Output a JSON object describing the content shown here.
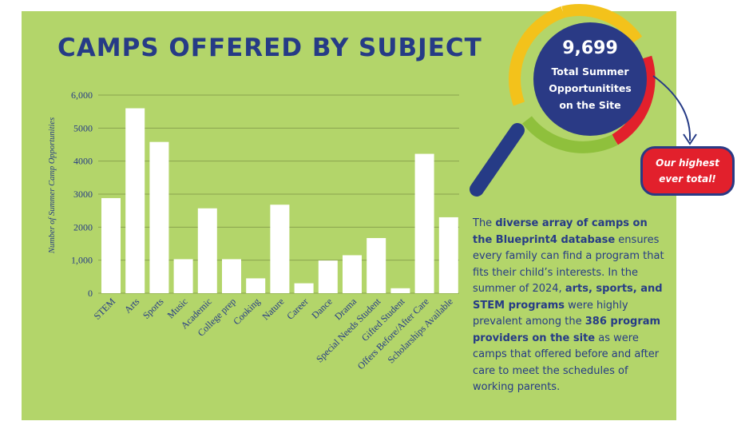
{
  "title": "CAMPS OFFERED BY SUBJECT",
  "highlight": {
    "number": "9,699",
    "caption": "Total Summer Opportunitites on the Site"
  },
  "callout": "Our highest ever total!",
  "description": {
    "p1": "The ",
    "b1": "diverse array of camps on the Blueprint4 database",
    "p2": " ensures every family can find a program that fits their child’s interests. In the summer of 2024, ",
    "b2": "arts, sports, and STEM programs",
    "p3": " were highly prevalent among the ",
    "b3": "386 program providers on the site",
    "p4": " as were camps that offered before and after care to meet the schedules of working parents."
  },
  "colors": {
    "panel": "#b3d56a",
    "navy": "#263b86",
    "bar": "#ffffff",
    "red": "#e2202c",
    "yellow": "#f3c21b",
    "green": "#8fc03c"
  },
  "icons": [
    "magnifying-glass-icon",
    "curved-arrow-icon"
  ],
  "chart_data": {
    "type": "bar",
    "title": "CAMPS OFFERED BY SUBJECT",
    "ylabel": "Number of Summer Camp Opportunities",
    "xlabel": "",
    "ylim": [
      0,
      6000
    ],
    "yticks": [
      "0",
      "1,000",
      "2000",
      "3000",
      "4000",
      "5000",
      "6,000"
    ],
    "grid": true,
    "categories": [
      "STEM",
      "Arts",
      "Sports",
      "Music",
      "Academic",
      "College prep",
      "Cooking",
      "Nature",
      "Career",
      "Dance",
      "Drama",
      "Special Needs Student",
      "Gifted Student",
      "Offers Before/After Care",
      "Scholarships Available"
    ],
    "values": [
      2880,
      5600,
      4580,
      1030,
      2570,
      1030,
      450,
      2680,
      300,
      990,
      1150,
      1670,
      150,
      4220,
      2300
    ]
  }
}
